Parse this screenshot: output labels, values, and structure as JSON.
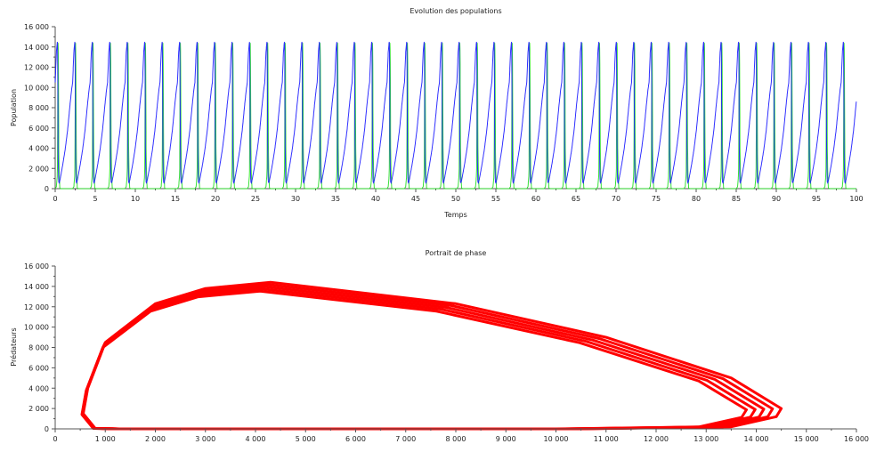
{
  "chart_data": [
    {
      "type": "line",
      "title": "Evolution des populations",
      "xlabel": "Temps",
      "ylabel": "Population",
      "xlim": [
        0,
        100
      ],
      "ylim": [
        0,
        16000
      ],
      "x_ticks": [
        "0",
        "5",
        "10",
        "15",
        "20",
        "25",
        "30",
        "35",
        "40",
        "45",
        "50",
        "55",
        "60",
        "65",
        "70",
        "75",
        "80",
        "85",
        "90",
        "95",
        "100"
      ],
      "y_ticks": [
        "0",
        "2 000",
        "4 000",
        "6 000",
        "8 000",
        "10 000",
        "12 000",
        "14 000",
        "16 000"
      ],
      "grid": false,
      "period": 2.18,
      "cycle_t": [
        0,
        0.15,
        0.25,
        0.28,
        0.3,
        0.32,
        0.34,
        0.36,
        0.38,
        0.4,
        0.42,
        0.45,
        0.5,
        0.58,
        0.7,
        0.95,
        1.25,
        1.55,
        1.85,
        2.05,
        2.18
      ],
      "series": [
        {
          "color": "#1a1aff",
          "role": "prey",
          "values": [
            10500,
            13500,
            14400,
            14500,
            13500,
            11000,
            8000,
            4300,
            3000,
            2000,
            1000,
            650,
            560,
            800,
            1300,
            2400,
            3900,
            5800,
            8300,
            9800,
            10500
          ]
        },
        {
          "color": "#22dd22",
          "role": "predator",
          "values": [
            0,
            200,
            1200,
            2000,
            5000,
            9000,
            12300,
            14400,
            13800,
            12300,
            8500,
            4000,
            1500,
            50,
            0,
            0,
            0,
            0,
            0,
            0,
            0
          ]
        }
      ]
    },
    {
      "type": "line",
      "title": "Portrait de phase",
      "xlabel": "",
      "ylabel": "Prédateurs",
      "xlim": [
        0,
        16000
      ],
      "ylim": [
        0,
        16000
      ],
      "x_ticks": [
        "0",
        "1 000",
        "2 000",
        "3 000",
        "4 000",
        "5 000",
        "6 000",
        "7 000",
        "8 000",
        "9 000",
        "10 000",
        "11 000",
        "12 000",
        "13 000",
        "14 000",
        "15 000",
        "16 000"
      ],
      "y_ticks": [
        "0",
        "2 000",
        "4 000",
        "6 000",
        "8 000",
        "10 000",
        "12 000",
        "14 000",
        "16 000"
      ],
      "grid": false,
      "color": "#ff0000"
    }
  ]
}
